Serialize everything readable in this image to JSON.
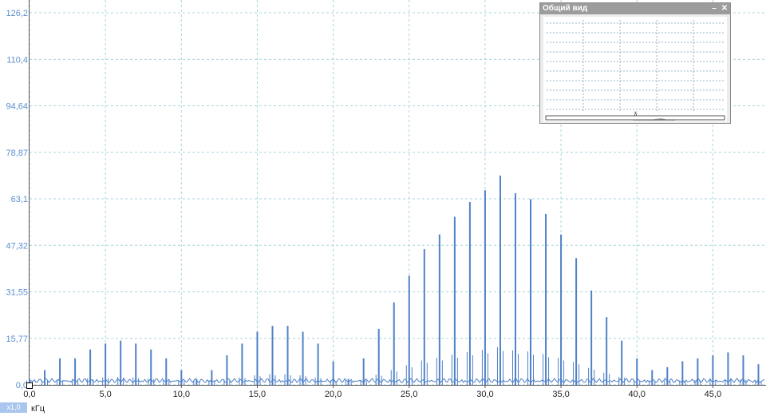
{
  "chart_data": {
    "type": "bar",
    "style": "spectrum-lines",
    "xlabel": "кГц",
    "x_ticks": [
      "0,0",
      "5,0",
      "10,0",
      "15,0",
      "20,0",
      "25,0",
      "30,0",
      "35,0",
      "40,0",
      "45,0"
    ],
    "x_tick_values": [
      0,
      5,
      10,
      15,
      20,
      25,
      30,
      35,
      40,
      45
    ],
    "y_ticks": [
      "0,0",
      "15,77",
      "31,55",
      "47,32",
      "63,1",
      "78,87",
      "94,64",
      "110,4",
      "126,2"
    ],
    "y_tick_values": [
      0,
      15.77,
      31.55,
      47.32,
      63.1,
      78.87,
      94.64,
      110.4,
      126.2
    ],
    "xlim": [
      0,
      48.5
    ],
    "ylim": [
      0,
      126.2
    ],
    "grid": true,
    "line_color": "#4f81c7",
    "series": [
      {
        "peaks_khz": [
          0,
          1,
          2,
          3,
          4,
          5,
          6,
          7,
          8,
          9,
          10,
          11,
          12,
          13,
          14,
          15,
          16,
          17,
          18,
          19,
          20,
          21,
          22,
          23,
          24,
          25,
          26,
          27,
          28,
          29,
          30,
          31,
          32,
          33,
          34,
          35,
          36,
          37,
          38,
          39,
          40,
          41,
          42,
          43,
          44,
          45,
          46,
          47,
          48
        ],
        "peak_values": [
          2,
          5,
          9,
          9,
          12,
          14,
          15,
          14,
          12,
          9,
          5,
          2,
          5,
          10,
          14,
          18,
          20,
          20,
          18,
          14,
          8,
          2,
          9,
          19,
          28,
          37,
          46,
          51,
          57,
          62,
          66,
          71,
          65,
          63,
          58,
          51,
          43,
          32,
          23,
          15,
          9,
          5,
          6,
          8,
          9,
          10,
          11,
          10,
          7
        ]
      }
    ]
  },
  "overview_window": {
    "title": "Общий вид",
    "minimize_label": "–",
    "close_label": "✕"
  },
  "zoom_badge": "x1,0"
}
